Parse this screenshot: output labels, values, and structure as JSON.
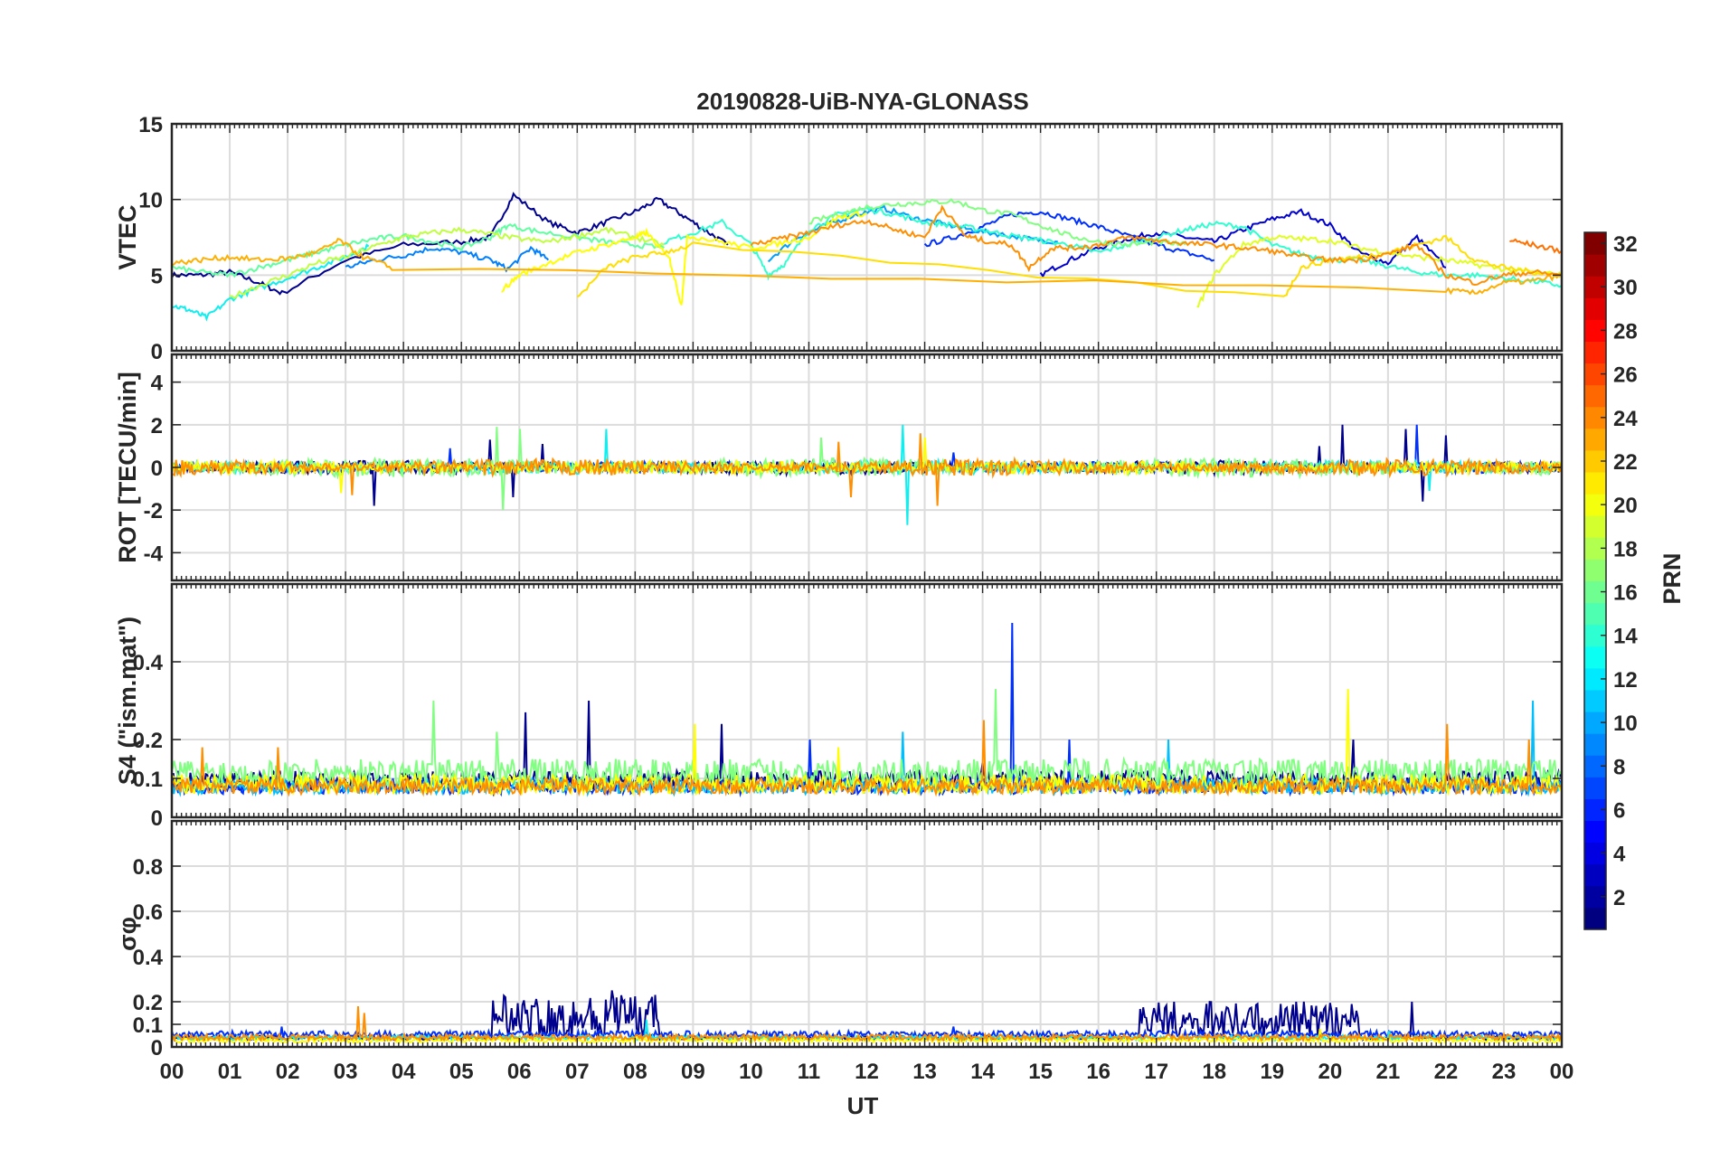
{
  "figure": {
    "title": "20190828-UiB-NYA-GLONASS",
    "xlabel": "UT",
    "x_ticks": [
      "00",
      "01",
      "02",
      "03",
      "04",
      "05",
      "06",
      "07",
      "08",
      "09",
      "10",
      "11",
      "12",
      "13",
      "14",
      "15",
      "16",
      "17",
      "18",
      "19",
      "20",
      "21",
      "22",
      "23",
      "00"
    ],
    "colorbar": {
      "label": "PRN",
      "range": [
        1,
        32
      ],
      "ticks": [
        2,
        4,
        6,
        8,
        10,
        12,
        14,
        16,
        18,
        20,
        22,
        24,
        26,
        28,
        30,
        32
      ],
      "colormap": "jet"
    }
  },
  "chart_data": [
    {
      "type": "line",
      "ylabel": "VTEC",
      "ylim": [
        0,
        15
      ],
      "yticks": [
        0,
        5,
        10,
        15
      ],
      "grid": true,
      "series": [
        {
          "prn": 2,
          "color": "#00008f",
          "x": [
            0,
            0.5,
            1,
            1.5,
            1.9,
            3,
            4,
            5,
            5.5,
            5.9,
            6.5,
            7,
            7.5,
            8,
            8.4,
            8.8,
            9.2,
            9.6
          ],
          "y": [
            5,
            5,
            5.2,
            4.5,
            3.8,
            6,
            7,
            7.2,
            7.5,
            10.3,
            8.5,
            7.8,
            8.5,
            9.2,
            10,
            9,
            8,
            7
          ]
        },
        {
          "prn": 3,
          "color": "#0000cf",
          "x": [
            15,
            15.5,
            16,
            16.5,
            17,
            17.5,
            18,
            18.5,
            19,
            19.5,
            20,
            20.5,
            21,
            21.5,
            22
          ],
          "y": [
            5,
            6,
            6.8,
            7.4,
            7.8,
            7.5,
            7.2,
            8,
            8.7,
            9.2,
            8.3,
            6.5,
            5.8,
            7.5,
            5.5
          ]
        },
        {
          "prn": 6,
          "color": "#0030ff",
          "x": [
            13,
            13.5,
            14,
            14.5,
            15,
            15.5,
            16,
            16.5,
            17,
            17.5,
            18
          ],
          "y": [
            7,
            7.5,
            8.2,
            9,
            9.2,
            8.7,
            8.2,
            7.6,
            7,
            6.5,
            6
          ]
        },
        {
          "prn": 9,
          "color": "#0080ff",
          "x": [
            3,
            3.5,
            4,
            4.5,
            5,
            5.5,
            5.8,
            6.2,
            6.5
          ],
          "y": [
            5.5,
            6,
            6.3,
            6.8,
            6.5,
            6,
            5.4,
            6.8,
            6
          ]
        },
        {
          "prn": 10,
          "color": "#00a0ff",
          "x": [
            10.3,
            10.8,
            11.3,
            11.8,
            12.3,
            12.8,
            13.3,
            13.8,
            14.3,
            14.8,
            15.3
          ],
          "y": [
            6,
            7.5,
            8.3,
            9,
            9.4,
            8.8,
            8.4,
            8,
            7.7,
            7.4,
            7.2
          ]
        },
        {
          "prn": 12,
          "color": "#10efef",
          "x": [
            0,
            0.3,
            0.6,
            1,
            1.4,
            2,
            2.5,
            3,
            3.4
          ],
          "y": [
            3,
            2.7,
            2.2,
            3.4,
            4,
            4.8,
            5.5,
            6.2,
            6.9
          ]
        },
        {
          "prn": 13,
          "color": "#30ffcf",
          "x": [
            8.5,
            9,
            9.5,
            10,
            10.3,
            10.6,
            11,
            11.5,
            12,
            12.5,
            13,
            13.5,
            14,
            14.5,
            15,
            15.5,
            16,
            16.5,
            17,
            17.5,
            18,
            18.5,
            19,
            19.5,
            20,
            20.5,
            21,
            21.5,
            22,
            22.5,
            23,
            23.5,
            24
          ],
          "y": [
            7.2,
            7.8,
            8.5,
            7,
            5,
            5.8,
            8,
            9,
            9.4,
            9,
            8.5,
            8.3,
            8,
            7.6,
            7.3,
            7,
            6.5,
            7,
            7.5,
            8,
            8.4,
            8.2,
            7,
            6.4,
            6,
            6,
            5.6,
            5.2,
            5,
            5,
            4.8,
            4.6,
            4.3
          ]
        },
        {
          "prn": 15,
          "color": "#60ff9f",
          "x": [
            0,
            0.5,
            1,
            1.5,
            2,
            2.5,
            3,
            3.5,
            4,
            4.5,
            5,
            5.5,
            5.8,
            6.3,
            7,
            7.5,
            8,
            8.5
          ],
          "y": [
            5.5,
            5.2,
            5,
            5.5,
            6,
            6.5,
            7,
            7.4,
            7.6,
            7.2,
            6.8,
            7.5,
            8.3,
            7.9,
            7.5,
            7.2,
            7,
            6.8
          ]
        },
        {
          "prn": 16,
          "color": "#80ff80",
          "x": [
            11,
            11.5,
            12,
            12.5,
            13,
            13.5,
            14,
            14.5,
            15,
            15.5,
            16,
            16.5,
            17,
            17.5
          ],
          "y": [
            8.5,
            9,
            9.5,
            9.7,
            9.8,
            9.9,
            9.3,
            9,
            8.3,
            7.6,
            7.2,
            7,
            7.2,
            7
          ]
        },
        {
          "prn": 18,
          "color": "#c0ff40",
          "x": [
            1,
            1.5,
            2,
            2.5,
            3,
            3.5,
            4,
            4.5,
            5,
            5.5,
            6,
            6.5,
            7,
            7.5,
            8,
            8.5
          ],
          "y": [
            3.5,
            4.3,
            5,
            5.8,
            6.2,
            6.9,
            7.5,
            7.8,
            8,
            7.7,
            7.4,
            7.2,
            7.6,
            8,
            7.5,
            7
          ]
        },
        {
          "prn": 19,
          "color": "#e0ff20",
          "x": [
            17.7,
            18,
            18.5,
            19,
            19.5,
            20,
            20.5,
            21,
            21.5,
            22,
            22.5,
            23,
            23.5,
            24
          ],
          "y": [
            2.8,
            5,
            7,
            7.5,
            7.4,
            7.3,
            6.8,
            6.5,
            6.2,
            6,
            5.7,
            5.4,
            5.2,
            5
          ]
        },
        {
          "prn": 20,
          "color": "#ffff00",
          "x": [
            5.7,
            6,
            6.5,
            7,
            7.5,
            8,
            8.2,
            8.6,
            8.8,
            8.9,
            9.5,
            10,
            10.5,
            11,
            11.5,
            12
          ],
          "y": [
            4,
            5,
            5.8,
            6.5,
            7,
            7.5,
            7.8,
            6,
            3,
            7.6,
            7.2,
            6.8,
            7.1,
            7.5,
            8.8,
            9.1
          ]
        },
        {
          "prn": 21,
          "color": "#ffdf00",
          "x": [
            7,
            7.5,
            8,
            8.5,
            9,
            19.2,
            19.5,
            20,
            20.5,
            21,
            21.5,
            22,
            22.5,
            23,
            23.5,
            24
          ],
          "y": [
            3.5,
            5.5,
            6.2,
            6.5,
            7,
            3.5,
            5.5,
            6,
            6.2,
            6.5,
            7,
            7.5,
            6,
            5.5,
            5.2,
            5
          ]
        },
        {
          "prn": 22,
          "color": "#ffaf00",
          "x": [
            0,
            0.5,
            1,
            1.5,
            2,
            2.5,
            2.9,
            3.3,
            3.8,
            22,
            22.5,
            23,
            23.5,
            24
          ],
          "y": [
            5.8,
            6,
            6.2,
            6,
            6.1,
            6.5,
            7.3,
            6.2,
            5.5,
            4,
            3.8,
            4.5,
            4.6,
            5
          ]
        },
        {
          "prn": 23,
          "color": "#ff8f00",
          "x": [
            10,
            10.5,
            11,
            11.5,
            12,
            12.5,
            13,
            13.3,
            13.7,
            14,
            14.5,
            14.8,
            15.2,
            15.6,
            16,
            16.5,
            17,
            17.5,
            18,
            18.5,
            19,
            19.5,
            20,
            20.5,
            21,
            21.5,
            22,
            22.5,
            23,
            23.5,
            24
          ],
          "y": [
            7,
            7.4,
            7.8,
            8.3,
            8.6,
            8,
            7.5,
            9.5,
            7.6,
            7.3,
            7,
            5.5,
            6.8,
            6.8,
            7,
            7.5,
            7.3,
            7.1,
            7,
            6.8,
            6.6,
            6.2,
            6,
            6,
            6.4,
            7,
            5,
            4.5,
            5,
            5.2,
            5
          ]
        },
        {
          "prn": 24,
          "color": "#ff7000",
          "x": [
            23.1,
            23.5,
            24
          ],
          "y": [
            7.3,
            7,
            6.6
          ]
        }
      ]
    },
    {
      "type": "line",
      "ylabel": "ROT [TECU/min]",
      "ylim": [
        -5.3,
        5.3
      ],
      "yticks": [
        -4,
        -2,
        0,
        2,
        4
      ],
      "grid": true,
      "series": [
        {
          "prn": 2,
          "color": "#00008f",
          "amp": 0.25,
          "spikes": [
            [
              3.5,
              -1.8
            ],
            [
              5.5,
              1.3
            ],
            [
              5.9,
              -1.4
            ],
            [
              6.4,
              1.1
            ],
            [
              20.2,
              2
            ],
            [
              21.3,
              1.8
            ],
            [
              21.6,
              -1.6
            ],
            [
              22,
              1.5
            ],
            [
              19.8,
              1
            ]
          ]
        },
        {
          "prn": 6,
          "color": "#0030ff",
          "amp": 0.2,
          "spikes": [
            [
              4.8,
              0.9
            ],
            [
              13.5,
              0.7
            ],
            [
              21.5,
              2
            ]
          ]
        },
        {
          "prn": 12,
          "color": "#10efef",
          "amp": 0.25,
          "spikes": [
            [
              7.5,
              1.8
            ],
            [
              12.7,
              -2.7
            ],
            [
              12.6,
              2
            ],
            [
              21.7,
              -1.1
            ]
          ]
        },
        {
          "prn": 16,
          "color": "#80ff80",
          "amp": 0.35,
          "spikes": [
            [
              5.6,
              1.9
            ],
            [
              5.7,
              -2
            ],
            [
              6,
              1.8
            ],
            [
              11.2,
              1.4
            ]
          ]
        },
        {
          "prn": 20,
          "color": "#ffff00",
          "amp": 0.25,
          "spikes": [
            [
              2.9,
              -1.2
            ],
            [
              13,
              1.4
            ]
          ]
        },
        {
          "prn": 23,
          "color": "#ff8f00",
          "amp": 0.3,
          "spikes": [
            [
              3.1,
              -1.3
            ],
            [
              11.5,
              1.2
            ],
            [
              11.7,
              -1.4
            ],
            [
              13.2,
              -1.8
            ],
            [
              12.9,
              1.6
            ]
          ]
        }
      ]
    },
    {
      "type": "line",
      "ylabel": "S4 (\"ism.mat\")",
      "ylim": [
        0,
        0.6
      ],
      "yticks": [
        0,
        0.1,
        0.2,
        0.4
      ],
      "grid": true,
      "series": [
        {
          "prn": 2,
          "color": "#00008f",
          "base": 0.07,
          "amp": 0.05,
          "spikes": [
            [
              6.1,
              0.27
            ],
            [
              7.2,
              0.3
            ],
            [
              9.5,
              0.24
            ],
            [
              14,
              0.14
            ],
            [
              20.4,
              0.2
            ]
          ]
        },
        {
          "prn": 6,
          "color": "#0030ff",
          "base": 0.06,
          "amp": 0.04,
          "spikes": [
            [
              14.5,
              0.5
            ],
            [
              15.5,
              0.2
            ],
            [
              11,
              0.2
            ]
          ]
        },
        {
          "prn": 11,
          "color": "#00bfff",
          "base": 0.06,
          "amp": 0.04,
          "spikes": [
            [
              12.6,
              0.22
            ],
            [
              17.2,
              0.2
            ],
            [
              23.5,
              0.3
            ]
          ]
        },
        {
          "prn": 16,
          "color": "#80ff80",
          "base": 0.08,
          "amp": 0.07,
          "spikes": [
            [
              4.5,
              0.3
            ],
            [
              14.2,
              0.33
            ],
            [
              5.6,
              0.22
            ]
          ]
        },
        {
          "prn": 20,
          "color": "#ffff00",
          "base": 0.06,
          "amp": 0.05,
          "spikes": [
            [
              9,
              0.24
            ],
            [
              20.3,
              0.33
            ],
            [
              11.5,
              0.18
            ]
          ]
        },
        {
          "prn": 23,
          "color": "#ff8f00",
          "base": 0.06,
          "amp": 0.04,
          "spikes": [
            [
              1.8,
              0.18
            ],
            [
              0.5,
              0.18
            ],
            [
              14,
              0.25
            ],
            [
              22,
              0.24
            ],
            [
              23.4,
              0.2
            ]
          ]
        }
      ]
    },
    {
      "type": "line",
      "ylabel": "σφ",
      "ylim": [
        0,
        1
      ],
      "yticks": [
        0,
        0.1,
        0.2,
        0.4,
        0.6,
        0.8
      ],
      "grid": true,
      "series": [
        {
          "prn": 2,
          "color": "#00008f",
          "base": 0.03,
          "amp": 0.02,
          "bursts": [
            [
              5.5,
              8.4,
              0.2
            ],
            [
              16.7,
              20.5,
              0.17
            ]
          ],
          "spikes": [
            [
              7.6,
              0.25
            ],
            [
              21.4,
              0.2
            ]
          ]
        },
        {
          "prn": 6,
          "color": "#0030ff",
          "base": 0.04,
          "amp": 0.03,
          "spikes": [
            [
              1.9,
              0.09
            ],
            [
              13.5,
              0.09
            ]
          ]
        },
        {
          "prn": 12,
          "color": "#10efef",
          "base": 0.03,
          "amp": 0.02,
          "spikes": [
            [
              8.2,
              0.12
            ],
            [
              21,
              0.07
            ]
          ]
        },
        {
          "prn": 20,
          "color": "#ffff00",
          "base": 0.02,
          "amp": 0.02,
          "spikes": [
            [
              19.8,
              0.08
            ]
          ]
        },
        {
          "prn": 23,
          "color": "#ff8f00",
          "base": 0.03,
          "amp": 0.025,
          "spikes": [
            [
              3.2,
              0.18
            ],
            [
              3.3,
              0.15
            ]
          ]
        }
      ]
    }
  ]
}
